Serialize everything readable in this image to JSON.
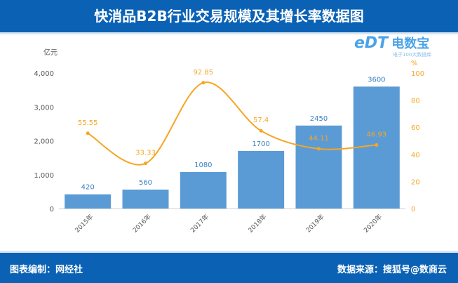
{
  "title": "快消品B2B行业交易规模及其增长率数据图",
  "footer": {
    "compiled_by": "图表编制：网经社",
    "source": "数据来源：搜狐号@数商云"
  },
  "logo": {
    "name": "电数宝",
    "sub": "电子100大数据库",
    "mark": "eDT"
  },
  "chart_data": {
    "type": "bar+line",
    "categories": [
      "2015年",
      "2016年",
      "2017年",
      "2018年",
      "2019年",
      "2020年"
    ],
    "left_axis": {
      "unit": "亿元",
      "ticks": [
        "0",
        "1,000",
        "2,000",
        "3,000",
        "4,000"
      ],
      "range": [
        0,
        4000
      ]
    },
    "right_axis": {
      "unit": "%",
      "ticks": [
        "0",
        "20",
        "40",
        "60",
        "80",
        "100"
      ],
      "range": [
        0,
        100
      ]
    },
    "series": [
      {
        "type": "bar",
        "axis": "left",
        "color": "#5b9bd5",
        "values": [
          420,
          560,
          1080,
          1700,
          2450,
          3600
        ],
        "labels": [
          "420",
          "560",
          "1080",
          "1700",
          "2450",
          "3600"
        ]
      },
      {
        "type": "line",
        "axis": "right",
        "color": "#f5a623",
        "values": [
          55.55,
          33.33,
          92.85,
          57.4,
          44.11,
          46.93
        ],
        "labels": [
          "55.55",
          "33.33",
          "92.85",
          "57.4",
          "44.11",
          "46.93"
        ]
      }
    ],
    "grid": false
  }
}
